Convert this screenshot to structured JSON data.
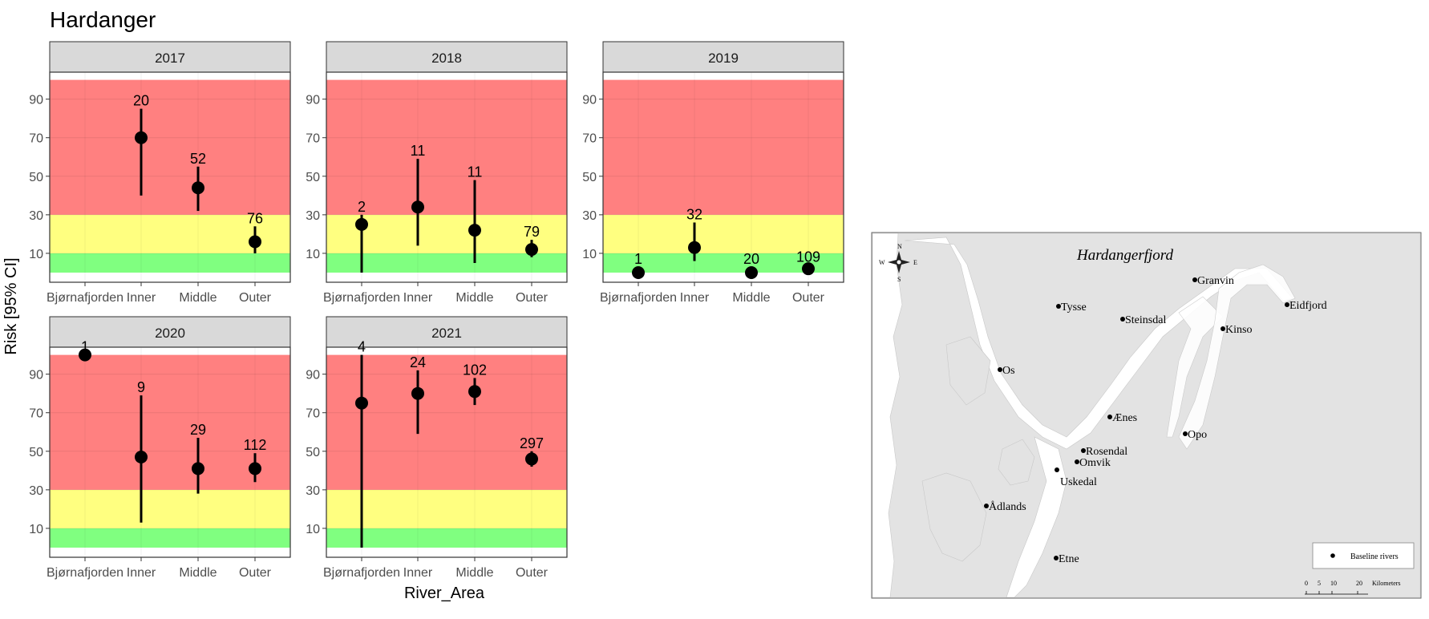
{
  "figure": {
    "title": "Hardanger"
  },
  "chart_data": {
    "type": "scatter",
    "subtype": "point-range faceted by year",
    "xlabel": "River_Area",
    "ylabel": "Risk [95% CI]",
    "categories": [
      "Bjørnafjorden",
      "Inner",
      "Middle",
      "Outer"
    ],
    "yticks": [
      10,
      30,
      50,
      70,
      90
    ],
    "ylim": [
      -5,
      104
    ],
    "bands": [
      {
        "from": 0,
        "to": 10,
        "color": "#80ff80"
      },
      {
        "from": 10,
        "to": 30,
        "color": "#ffff80"
      },
      {
        "from": 30,
        "to": 100,
        "color": "#ff8080"
      }
    ],
    "panels": [
      {
        "year": "2017",
        "points": [
          {
            "category": "Inner",
            "value": 70,
            "lower": 40,
            "upper": 85,
            "n": "20"
          },
          {
            "category": "Middle",
            "value": 44,
            "lower": 32,
            "upper": 55,
            "n": "52"
          },
          {
            "category": "Outer",
            "value": 16,
            "lower": 10,
            "upper": 24,
            "n": "76"
          }
        ]
      },
      {
        "year": "2018",
        "points": [
          {
            "category": "Bjørnafjorden",
            "value": 25,
            "lower": 0,
            "upper": 30,
            "n": "2"
          },
          {
            "category": "Inner",
            "value": 34,
            "lower": 14,
            "upper": 59,
            "n": "11"
          },
          {
            "category": "Middle",
            "value": 22,
            "lower": 5,
            "upper": 48,
            "n": "11"
          },
          {
            "category": "Outer",
            "value": 12,
            "lower": 8,
            "upper": 17,
            "n": "79"
          }
        ]
      },
      {
        "year": "2019",
        "points": [
          {
            "category": "Bjørnafjorden",
            "value": 0,
            "lower": 0,
            "upper": 3,
            "n": "1"
          },
          {
            "category": "Inner",
            "value": 13,
            "lower": 6,
            "upper": 26,
            "n": "32"
          },
          {
            "category": "Middle",
            "value": 0,
            "lower": 0,
            "upper": 3,
            "n": "20"
          },
          {
            "category": "Outer",
            "value": 2,
            "lower": 0,
            "upper": 4,
            "n": "109"
          }
        ]
      },
      {
        "year": "2020",
        "points": [
          {
            "category": "Bjørnafjorden",
            "value": 100,
            "lower": 100,
            "upper": 100,
            "n": "1"
          },
          {
            "category": "Inner",
            "value": 47,
            "lower": 13,
            "upper": 79,
            "n": "9"
          },
          {
            "category": "Middle",
            "value": 41,
            "lower": 28,
            "upper": 57,
            "n": "29"
          },
          {
            "category": "Outer",
            "value": 41,
            "lower": 34,
            "upper": 49,
            "n": "112"
          }
        ]
      },
      {
        "year": "2021",
        "points": [
          {
            "category": "Bjørnafjorden",
            "value": 75,
            "lower": 0,
            "upper": 100,
            "n": "4"
          },
          {
            "category": "Inner",
            "value": 80,
            "lower": 59,
            "upper": 92,
            "n": "24"
          },
          {
            "category": "Middle",
            "value": 81,
            "lower": 74,
            "upper": 88,
            "n": "102"
          },
          {
            "category": "Outer",
            "value": 46,
            "lower": 42,
            "upper": 50,
            "n": "297"
          }
        ]
      }
    ],
    "legend": "none",
    "grid": true
  },
  "map": {
    "title": "Hardangerfjord",
    "compass": {
      "n": "N",
      "s": "S",
      "e": "E",
      "w": "W"
    },
    "places": [
      {
        "name": "Granvin"
      },
      {
        "name": "Eidfjord"
      },
      {
        "name": "Tysse"
      },
      {
        "name": "Steinsdal"
      },
      {
        "name": "Kinso"
      },
      {
        "name": "Os"
      },
      {
        "name": "Ænes"
      },
      {
        "name": "Opo"
      },
      {
        "name": "Rosendal"
      },
      {
        "name": "Omvik"
      },
      {
        "name": "Uskedal"
      },
      {
        "name": "Ådlands"
      },
      {
        "name": "Etne"
      }
    ],
    "legend_label": "Baseline rivers",
    "scale": {
      "ticks": [
        "0",
        "5",
        "10",
        "20"
      ],
      "unit": "Kilometers"
    },
    "colors": {
      "water": "#ffffff",
      "land": "#e3e3e3"
    }
  }
}
